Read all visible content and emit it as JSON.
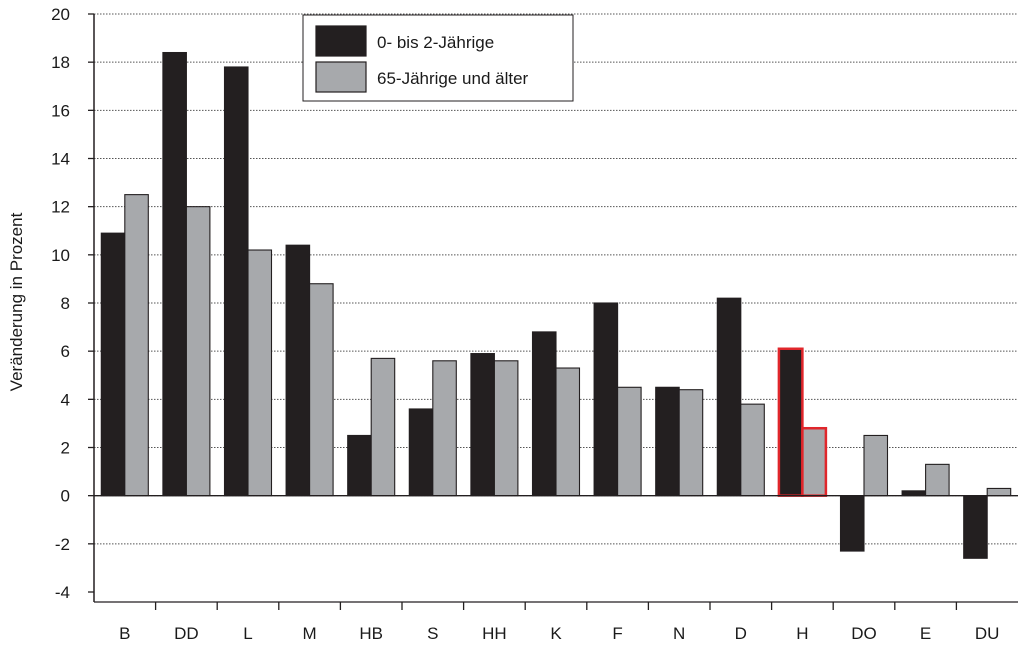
{
  "chart_data": {
    "type": "bar",
    "title": "",
    "xlabel": "",
    "ylabel": "Veränderung in Prozent",
    "ylim": [
      -4,
      20
    ],
    "yticks": [
      -4,
      -2,
      0,
      2,
      4,
      6,
      8,
      10,
      12,
      14,
      16,
      18,
      20
    ],
    "grid": "horizontal dotted",
    "legend_position": "top-center",
    "categories": [
      "B",
      "DD",
      "L",
      "M",
      "HB",
      "S",
      "HH",
      "K",
      "F",
      "N",
      "D",
      "H",
      "DO",
      "E",
      "DU"
    ],
    "highlighted_category": "H",
    "highlight_color": "#e0262b",
    "series": [
      {
        "name": "0- bis 2-Jährige",
        "color": "#231f20",
        "values": [
          10.9,
          18.4,
          17.8,
          10.4,
          2.5,
          3.6,
          5.9,
          6.8,
          8.0,
          4.5,
          8.2,
          6.1,
          -2.3,
          0.2,
          -2.6
        ]
      },
      {
        "name": "65-Jährige und älter",
        "color": "#a7a9ac",
        "values": [
          12.5,
          12.0,
          10.2,
          8.8,
          5.7,
          5.6,
          5.6,
          5.3,
          4.5,
          4.4,
          3.8,
          2.8,
          2.5,
          1.3,
          0.3
        ]
      }
    ]
  }
}
